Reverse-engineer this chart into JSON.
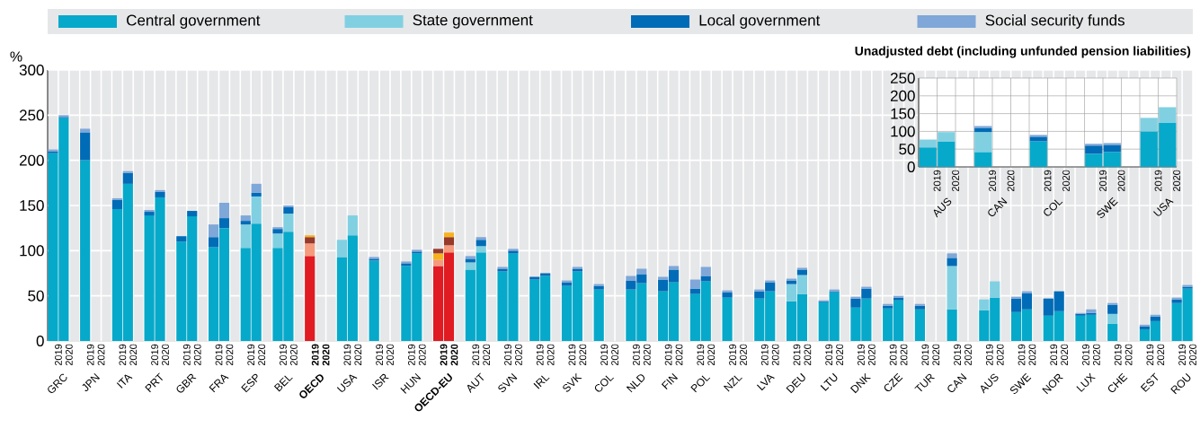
{
  "chart_data": [
    {
      "type": "bar",
      "stacked": true,
      "ylabel": "%",
      "legend": "top",
      "grid": true,
      "ylim": [
        0,
        300
      ],
      "yticks": [
        0,
        50,
        100,
        150,
        200,
        250,
        300
      ],
      "categories": [
        "2019",
        "2020",
        null,
        "2019",
        "2020",
        null,
        "2019",
        "2020",
        null,
        "2019",
        "2020",
        null,
        "2019",
        "2020",
        null,
        "2019",
        "2020",
        null,
        "2019",
        "2020",
        null,
        "2019",
        "2020",
        null,
        "**2019**",
        "**2020**",
        null,
        "2019",
        "2020",
        null,
        "2019",
        "2020",
        null,
        "2019",
        "2020",
        null,
        "**2019**",
        "**2020**",
        null,
        "2019",
        "2020",
        null,
        "2019",
        "2020",
        null,
        "2019",
        "2020",
        null,
        "2019",
        "2020",
        null,
        "2019",
        "2020",
        null,
        "2019",
        "2020",
        null,
        "2019",
        "2020",
        null,
        "2019",
        "2020",
        null,
        "2019",
        "2020",
        null,
        "2019",
        "2020",
        null,
        "2019",
        "2020",
        null,
        "2019",
        "2020",
        null,
        "2019",
        "2020",
        null,
        "2019",
        "2020",
        null,
        "2019",
        "2020",
        null,
        "2019",
        "2020",
        null,
        "2019",
        "2020",
        null,
        "2019",
        "2020",
        null,
        "2019",
        "2020",
        null,
        "2019",
        "2020",
        null,
        "2019",
        "2020",
        null,
        "2019",
        "2020",
        null,
        "2019",
        "2020"
      ],
      "annotations": [
        "GRC",
        "JPN",
        "ITA",
        "PRT",
        "GBR",
        "FRA",
        "ESP",
        "BEL",
        "**OECD**",
        "USA",
        "ISR",
        "HUN",
        "**OECD-EU**",
        "AUT",
        "SVN",
        "IRL",
        "SVK",
        "COL",
        "NLD",
        "FIN",
        "POL",
        "NZL",
        "LVA",
        "DEU",
        "LTU",
        "DNK",
        "CZE",
        "TUR",
        "CAN",
        "AUS",
        "SWE",
        "NOR",
        "LUX",
        "CHE",
        "EST",
        "ROU"
      ],
      "series": [
        {
          "name": "Central government",
          "color": "#06a9ca",
          "values": [
            208,
            247,
            null,
            200,
            null,
            null,
            146,
            174,
            null,
            139,
            159,
            null,
            110,
            138,
            null,
            104,
            125,
            null,
            103,
            130,
            null,
            103,
            121,
            null,
            94,
            null,
            null,
            93,
            117,
            null,
            89,
            null,
            null,
            83,
            97,
            null,
            83,
            98,
            null,
            79,
            98,
            null,
            77,
            97,
            null,
            68,
            72,
            null,
            61,
            77,
            null,
            57,
            null,
            null,
            57,
            64,
            null,
            55,
            65,
            null,
            52,
            66,
            null,
            48,
            null,
            null,
            47,
            55,
            null,
            44,
            52,
            null,
            43,
            54,
            null,
            37,
            47,
            null,
            36,
            45,
            null,
            35,
            null,
            null,
            35,
            null,
            null,
            34,
            48,
            null,
            32,
            35,
            null,
            28,
            33,
            null,
            28,
            29,
            null,
            19,
            null,
            null,
            13,
            22,
            null,
            42,
            58
          ],
          "colors": [
            "#06a9ca",
            "#06a9ca",
            null,
            "#06a9ca",
            "#06a9ca",
            null,
            "#06a9ca",
            "#06a9ca",
            null,
            "#06a9ca",
            "#06a9ca",
            null,
            "#06a9ca",
            "#06a9ca",
            null,
            "#06a9ca",
            "#06a9ca",
            null,
            "#06a9ca",
            "#06a9ca",
            null,
            "#06a9ca",
            "#06a9ca",
            null,
            "#e01b22",
            "#e01b22",
            null,
            "#06a9ca",
            "#06a9ca",
            null,
            "#06a9ca",
            "#06a9ca",
            null,
            "#06a9ca",
            "#06a9ca",
            null,
            "#e01b22",
            "#e01b22",
            null,
            "#06a9ca",
            "#06a9ca",
            null,
            "#06a9ca",
            "#06a9ca",
            null,
            "#06a9ca",
            "#06a9ca",
            null,
            "#06a9ca",
            "#06a9ca",
            null,
            "#06a9ca",
            "#06a9ca",
            null,
            "#06a9ca",
            "#06a9ca",
            null,
            "#06a9ca",
            "#06a9ca",
            null,
            "#06a9ca",
            "#06a9ca",
            null,
            "#06a9ca",
            "#06a9ca",
            null,
            "#06a9ca",
            "#06a9ca",
            null,
            "#06a9ca",
            "#06a9ca",
            null,
            "#06a9ca",
            "#06a9ca",
            null,
            "#06a9ca",
            "#06a9ca",
            null,
            "#06a9ca",
            "#06a9ca",
            null,
            "#06a9ca",
            "#06a9ca",
            null,
            "#06a9ca",
            "#06a9ca",
            null,
            "#06a9ca",
            "#06a9ca",
            null,
            "#06a9ca",
            "#06a9ca",
            null,
            "#06a9ca",
            "#06a9ca",
            null,
            "#06a9ca",
            "#06a9ca",
            null,
            "#06a9ca",
            "#06a9ca",
            null,
            "#06a9ca",
            "#06a9ca",
            null,
            "#06a9ca",
            "#06a9ca"
          ]
        },
        {
          "name": "State government",
          "color": "#80d0e2",
          "values": [
            0,
            0,
            null,
            0,
            null,
            null,
            0,
            0,
            null,
            0,
            0,
            null,
            0,
            0,
            null,
            0,
            0,
            null,
            26,
            30,
            null,
            16,
            20,
            null,
            14,
            null,
            null,
            19,
            22,
            null,
            0,
            null,
            null,
            0,
            0,
            null,
            7,
            8,
            null,
            8,
            7,
            null,
            0,
            0,
            null,
            0,
            0,
            null,
            0,
            0,
            null,
            0,
            null,
            null,
            0,
            0,
            null,
            0,
            0,
            null,
            0,
            0,
            null,
            0,
            null,
            null,
            0,
            0,
            null,
            19,
            21,
            null,
            0,
            0,
            null,
            0,
            0,
            null,
            0,
            0,
            null,
            0,
            null,
            null,
            48,
            null,
            null,
            12,
            18,
            null,
            0,
            0,
            null,
            0,
            0,
            null,
            0,
            0,
            null,
            11,
            null,
            null,
            0,
            0,
            null,
            0,
            0
          ],
          "colors": [
            "#80d0e2",
            "#80d0e2",
            null,
            "#80d0e2",
            "#80d0e2",
            null,
            "#80d0e2",
            "#80d0e2",
            null,
            "#80d0e2",
            "#80d0e2",
            null,
            "#80d0e2",
            "#80d0e2",
            null,
            "#80d0e2",
            "#80d0e2",
            null,
            "#80d0e2",
            "#80d0e2",
            null,
            "#80d0e2",
            "#80d0e2",
            null,
            "#f59a7d",
            "#f59a7d",
            null,
            "#80d0e2",
            "#80d0e2",
            null,
            "#80d0e2",
            "#80d0e2",
            null,
            "#80d0e2",
            "#80d0e2",
            null,
            "#f59a7d",
            "#f59a7d",
            null,
            "#80d0e2",
            "#80d0e2",
            null,
            "#80d0e2",
            "#80d0e2",
            null,
            "#80d0e2",
            "#80d0e2",
            null,
            "#80d0e2",
            "#80d0e2",
            null,
            "#80d0e2",
            "#80d0e2",
            null,
            "#80d0e2",
            "#80d0e2",
            null,
            "#80d0e2",
            "#80d0e2",
            null,
            "#80d0e2",
            "#80d0e2",
            null,
            "#80d0e2",
            "#80d0e2",
            null,
            "#80d0e2",
            "#80d0e2",
            null,
            "#80d0e2",
            "#80d0e2",
            null,
            "#80d0e2",
            "#80d0e2",
            null,
            "#80d0e2",
            "#80d0e2",
            null,
            "#80d0e2",
            "#80d0e2",
            null,
            "#80d0e2",
            "#80d0e2",
            null,
            "#80d0e2",
            "#80d0e2",
            null,
            "#80d0e2",
            "#80d0e2",
            null,
            "#80d0e2",
            "#80d0e2",
            null,
            "#80d0e2",
            "#80d0e2",
            null,
            "#80d0e2",
            "#80d0e2",
            null,
            "#80d0e2",
            "#80d0e2",
            null,
            "#80d0e2",
            "#80d0e2",
            null,
            "#80d0e2",
            "#80d0e2"
          ]
        },
        {
          "name": "Local government",
          "color": "#006bb6",
          "values": [
            2,
            1,
            null,
            31,
            null,
            null,
            10,
            12,
            null,
            4,
            6,
            null,
            6,
            6,
            null,
            11,
            11,
            null,
            4,
            4,
            null,
            5,
            7,
            null,
            7,
            null,
            null,
            0,
            0,
            null,
            2,
            null,
            null,
            3,
            2,
            null,
            7,
            9,
            null,
            4,
            7,
            null,
            3,
            3,
            null,
            3,
            3,
            null,
            4,
            3,
            null,
            4,
            null,
            null,
            10,
            10,
            null,
            13,
            14,
            null,
            6,
            6,
            null,
            6,
            null,
            null,
            8,
            10,
            null,
            4,
            6,
            null,
            1,
            1,
            null,
            10,
            11,
            null,
            3,
            3,
            null,
            4,
            null,
            null,
            9,
            null,
            null,
            0,
            0,
            null,
            15,
            18,
            null,
            19,
            22,
            null,
            2,
            2,
            null,
            10,
            null,
            null,
            3,
            5,
            null,
            4,
            2
          ],
          "colors": [
            "#006bb6",
            "#006bb6",
            null,
            "#006bb6",
            "#006bb6",
            null,
            "#006bb6",
            "#006bb6",
            null,
            "#006bb6",
            "#006bb6",
            null,
            "#006bb6",
            "#006bb6",
            null,
            "#006bb6",
            "#006bb6",
            null,
            "#006bb6",
            "#006bb6",
            null,
            "#006bb6",
            "#006bb6",
            null,
            "#963a2c",
            "#963a2c",
            null,
            "#006bb6",
            "#006bb6",
            null,
            "#006bb6",
            "#006bb6",
            null,
            "#006bb6",
            "#006bb6",
            null,
            "#f8b21d",
            "#963a2c",
            null,
            "#006bb6",
            "#006bb6",
            null,
            "#006bb6",
            "#006bb6",
            null,
            "#006bb6",
            "#006bb6",
            null,
            "#006bb6",
            "#006bb6",
            null,
            "#006bb6",
            "#006bb6",
            null,
            "#006bb6",
            "#006bb6",
            null,
            "#006bb6",
            "#006bb6",
            null,
            "#006bb6",
            "#006bb6",
            null,
            "#006bb6",
            "#006bb6",
            null,
            "#006bb6",
            "#006bb6",
            null,
            "#006bb6",
            "#006bb6",
            null,
            "#006bb6",
            "#006bb6",
            null,
            "#006bb6",
            "#006bb6",
            null,
            "#006bb6",
            "#006bb6",
            null,
            "#006bb6",
            "#006bb6",
            null,
            "#006bb6",
            "#006bb6",
            null,
            "#006bb6",
            "#006bb6",
            null,
            "#006bb6",
            "#006bb6",
            null,
            "#006bb6",
            "#006bb6",
            null,
            "#006bb6",
            "#006bb6",
            null,
            "#006bb6",
            "#006bb6",
            null,
            "#006bb6",
            "#006bb6",
            null,
            "#006bb6",
            "#006bb6"
          ]
        },
        {
          "name": "Social security funds",
          "color": "#7fa7d8",
          "values": [
            2,
            2,
            null,
            4,
            null,
            null,
            2,
            2,
            null,
            2,
            2,
            null,
            0,
            0,
            null,
            14,
            17,
            null,
            6,
            10,
            null,
            2,
            2,
            null,
            2,
            null,
            null,
            0,
            0,
            null,
            2,
            null,
            null,
            2,
            2,
            null,
            5,
            5,
            null,
            3,
            3,
            null,
            2,
            2,
            null,
            0,
            0,
            null,
            2,
            2,
            null,
            2,
            null,
            null,
            5,
            6,
            null,
            3,
            4,
            null,
            10,
            10,
            null,
            2,
            null,
            null,
            2,
            2,
            null,
            2,
            2,
            null,
            1,
            2,
            null,
            2,
            2,
            null,
            2,
            2,
            null,
            2,
            null,
            null,
            5,
            null,
            null,
            0,
            0,
            null,
            2,
            2,
            null,
            0,
            0,
            null,
            1,
            4,
            null,
            2,
            null,
            null,
            2,
            2,
            null,
            2,
            2
          ],
          "colors": [
            "#7fa7d8",
            "#7fa7d8",
            null,
            "#7fa7d8",
            "#7fa7d8",
            null,
            "#7fa7d8",
            "#7fa7d8",
            null,
            "#7fa7d8",
            "#7fa7d8",
            null,
            "#7fa7d8",
            "#7fa7d8",
            null,
            "#7fa7d8",
            "#7fa7d8",
            null,
            "#7fa7d8",
            "#7fa7d8",
            null,
            "#7fa7d8",
            "#7fa7d8",
            null,
            "#f8b21d",
            "#f8b21d",
            null,
            "#7fa7d8",
            "#7fa7d8",
            null,
            "#7fa7d8",
            "#7fa7d8",
            null,
            "#7fa7d8",
            "#7fa7d8",
            null,
            "#963a2c",
            "#f8b21d",
            null,
            "#7fa7d8",
            "#7fa7d8",
            null,
            "#7fa7d8",
            "#7fa7d8",
            null,
            "#7fa7d8",
            "#7fa7d8",
            null,
            "#7fa7d8",
            "#7fa7d8",
            null,
            "#7fa7d8",
            "#7fa7d8",
            null,
            "#7fa7d8",
            "#7fa7d8",
            null,
            "#7fa7d8",
            "#7fa7d8",
            null,
            "#7fa7d8",
            "#7fa7d8",
            null,
            "#7fa7d8",
            "#7fa7d8",
            null,
            "#7fa7d8",
            "#7fa7d8",
            null,
            "#7fa7d8",
            "#7fa7d8",
            null,
            "#7fa7d8",
            "#7fa7d8",
            null,
            "#7fa7d8",
            "#7fa7d8",
            null,
            "#7fa7d8",
            "#7fa7d8",
            null,
            "#7fa7d8",
            "#7fa7d8",
            null,
            "#7fa7d8",
            "#7fa7d8",
            null,
            "#7fa7d8",
            "#7fa7d8",
            null,
            "#7fa7d8",
            "#7fa7d8",
            null,
            "#7fa7d8",
            "#7fa7d8",
            null,
            "#7fa7d8",
            "#7fa7d8",
            null,
            "#7fa7d8",
            "#7fa7d8",
            null,
            "#7fa7d8",
            "#7fa7d8",
            null,
            "#7fa7d8",
            "#7fa7d8"
          ]
        }
      ]
    },
    {
      "type": "bar",
      "stacked": true,
      "title": "Unadjusted debt (including unfunded pension liabilities)",
      "grid": true,
      "ylim": [
        0,
        250
      ],
      "yticks": [
        0,
        50,
        100,
        150,
        200,
        250
      ],
      "categories": [
        "2019",
        "2020",
        null,
        "2019",
        "2020",
        null,
        "2019",
        "2020",
        null,
        "2019",
        "2020",
        null,
        "2019",
        "2020"
      ],
      "annotations": [
        "AUS",
        "CAN",
        "COL",
        "SWE",
        "USA"
      ],
      "series": [
        {
          "color": "#06a9ca",
          "values": [
            55,
            72,
            null,
            42,
            null,
            null,
            72,
            null,
            null,
            37,
            42,
            null,
            100,
            125
          ]
        },
        {
          "color": "#80d0e2",
          "values": [
            22,
            26,
            null,
            56,
            null,
            null,
            null,
            null,
            null,
            null,
            null,
            null,
            38,
            43
          ]
        },
        {
          "color": "#006bb6",
          "values": [
            null,
            null,
            null,
            12,
            null,
            null,
            13,
            null,
            null,
            23,
            20,
            null,
            null,
            null
          ]
        },
        {
          "color": "#7fa7d8",
          "values": [
            null,
            null,
            null,
            5,
            null,
            null,
            5,
            null,
            null,
            5,
            5,
            null,
            null,
            null
          ]
        }
      ]
    }
  ]
}
